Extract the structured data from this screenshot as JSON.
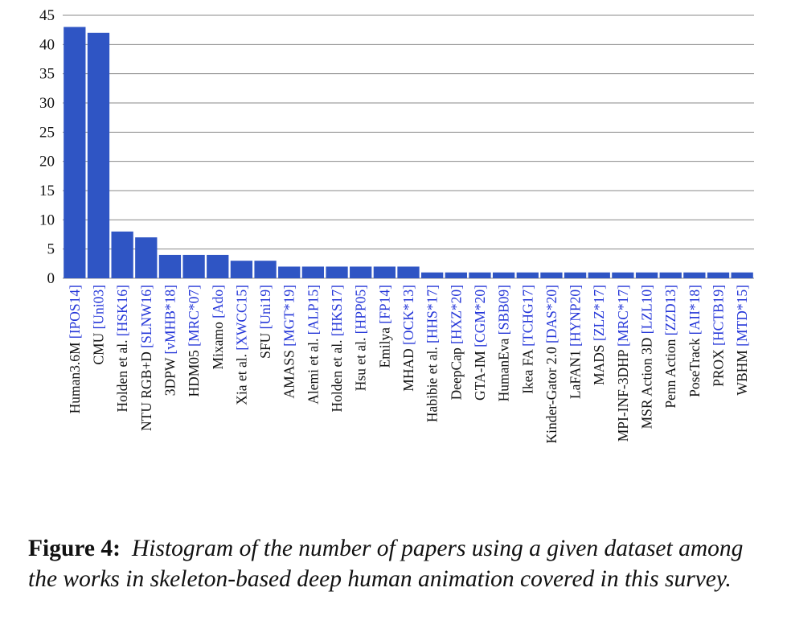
{
  "chart_data": {
    "type": "bar",
    "categories": [
      {
        "name": "Human3.6M",
        "cite": "[IPOS14]"
      },
      {
        "name": "CMU",
        "cite": "[Uni03]"
      },
      {
        "name": "Holden et al.",
        "cite": "[HSK16]"
      },
      {
        "name": "NTU RGB+D",
        "cite": "[SLNW16]"
      },
      {
        "name": "3DPW",
        "cite": "[vMHB*18]"
      },
      {
        "name": "HDM05",
        "cite": "[MRC*07]"
      },
      {
        "name": "Mixamo",
        "cite": "[Ado]"
      },
      {
        "name": "Xia et al.",
        "cite": "[XWCC15]"
      },
      {
        "name": "SFU",
        "cite": "[Uni19]"
      },
      {
        "name": "AMASS",
        "cite": "[MGT*19]"
      },
      {
        "name": "Alemi et al.",
        "cite": "[ALP15]"
      },
      {
        "name": "Holden et al.",
        "cite": "[HKS17]"
      },
      {
        "name": "Hsu et al.",
        "cite": "[HPP05]"
      },
      {
        "name": "Emilya",
        "cite": "[FP14]"
      },
      {
        "name": "MHAD",
        "cite": "[OCK*13]"
      },
      {
        "name": "Habibie et al.",
        "cite": "[HHS*17]"
      },
      {
        "name": "DeepCap",
        "cite": "[HXZ*20]"
      },
      {
        "name": "GTA-IM",
        "cite": "[CGM*20]"
      },
      {
        "name": "HumanEva",
        "cite": "[SBB09]"
      },
      {
        "name": "Ikea FA",
        "cite": "[TCHG17]"
      },
      {
        "name": "Kinder-Gator 2.0",
        "cite": "[DAS*20]"
      },
      {
        "name": "LaFAN1",
        "cite": "[HYNP20]"
      },
      {
        "name": "MADS",
        "cite": "[ZLZ*17]"
      },
      {
        "name": "MPI-INF-3DHP",
        "cite": "[MRC*17]"
      },
      {
        "name": "MSR Action 3D",
        "cite": "[LZL10]"
      },
      {
        "name": "Penn Action",
        "cite": "[ZZD13]"
      },
      {
        "name": "PoseTrack",
        "cite": "[AII*18]"
      },
      {
        "name": "PROX",
        "cite": "[HCTB19]"
      },
      {
        "name": "WBHM",
        "cite": "[MTD*15]"
      }
    ],
    "values": [
      43,
      42,
      8,
      7,
      4,
      4,
      4,
      3,
      3,
      2,
      2,
      2,
      2,
      2,
      2,
      1,
      1,
      1,
      1,
      1,
      1,
      1,
      1,
      1,
      1,
      1,
      1,
      1,
      1
    ],
    "ylim": [
      0,
      45
    ],
    "yticks": [
      0,
      5,
      10,
      15,
      20,
      25,
      30,
      35,
      40,
      45
    ],
    "grid": true,
    "bar_color": "#2f55c4",
    "citation_color": "#2436d8",
    "label_color": "#111111"
  },
  "caption": {
    "label": "Figure 4:",
    "text": "Histogram of the number of papers using a given dataset among the works in skeleton-based deep human animation covered in this survey."
  }
}
